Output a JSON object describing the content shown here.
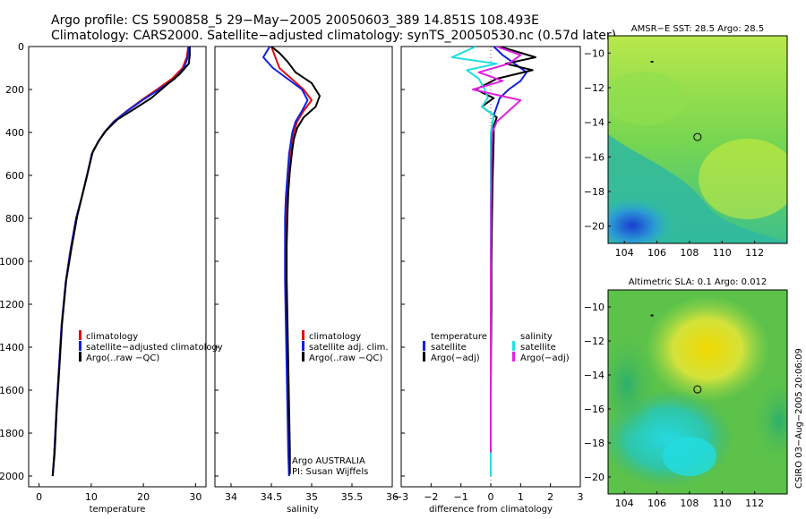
{
  "header": {
    "line1": "Argo profile: CS 5900858_5 29−May−2005 20050603_389 14.851S 108.493E",
    "line2": "Climatology: CARS2000. Satellite−adjusted climatology: synTS_20050530.nc (0.57d later)"
  },
  "footer": {
    "institution_line1": "Argo AUSTRALIA",
    "institution_line2": "PI: Susan Wijffels",
    "credit": "CSIRO 03−Aug−2005 20:06:09"
  },
  "colors": {
    "climatology": "#e01010",
    "satellite": "#1020e0",
    "argo": "#000000",
    "salinity_diff": "#e020e0",
    "salinity_sat": "#20e0e0"
  },
  "chart_data": [
    {
      "id": "temperature",
      "type": "line",
      "xlabel": "temperature",
      "ylabel": "",
      "xlim": [
        -2,
        32
      ],
      "ylim": [
        2050,
        0
      ],
      "xticks": [
        0,
        10,
        20,
        30
      ],
      "yticks": [
        0,
        200,
        400,
        600,
        800,
        1000,
        1200,
        1400,
        1600,
        1800,
        2000
      ],
      "legend": {
        "placement": "lower-right",
        "entries": [
          "climatology",
          "satellite−adjusted climatology",
          "Argo(..raw −QC)"
        ]
      },
      "series": [
        {
          "name": "climatology",
          "color": "#e01010",
          "x": [
            28.6,
            28.3,
            27.5,
            25.5,
            22.6,
            19.6,
            16.8,
            14.3,
            12.5,
            11.2,
            10.1,
            9.2,
            8.2,
            7.1,
            6.0,
            5.1,
            4.3,
            3.8,
            3.3,
            2.9,
            2.6
          ],
          "y": [
            0,
            50,
            100,
            150,
            200,
            250,
            300,
            350,
            400,
            450,
            500,
            600,
            700,
            800,
            950,
            1100,
            1300,
            1500,
            1700,
            1900,
            2000
          ]
        },
        {
          "name": "satellite-adjusted climatology",
          "color": "#1020e0",
          "x": [
            28.7,
            28.5,
            27.8,
            26.0,
            23.0,
            19.8,
            16.9,
            14.3,
            12.5,
            11.2,
            10.1,
            9.2,
            8.2,
            7.1,
            6.0,
            5.1,
            4.3,
            3.8,
            3.3,
            2.9,
            2.6
          ],
          "y": [
            0,
            50,
            100,
            150,
            200,
            250,
            300,
            350,
            400,
            450,
            500,
            600,
            700,
            800,
            950,
            1100,
            1300,
            1500,
            1700,
            1900,
            2000
          ]
        },
        {
          "name": "Argo(..raw -QC)",
          "color": "#000000",
          "x": [
            28.9,
            28.9,
            28.7,
            26.9,
            24.4,
            21.5,
            18.3,
            15.0,
            12.9,
            11.4,
            10.3,
            9.3,
            8.3,
            7.3,
            6.2,
            5.2,
            4.4,
            3.9,
            3.4,
            3.0,
            2.6
          ],
          "y": [
            0,
            40,
            80,
            130,
            180,
            240,
            290,
            340,
            390,
            440,
            490,
            590,
            690,
            790,
            940,
            1090,
            1290,
            1490,
            1690,
            1890,
            2000
          ]
        }
      ]
    },
    {
      "id": "salinity",
      "type": "line",
      "xlabel": "salinity",
      "ylabel": "",
      "xlim": [
        33.8,
        36.0
      ],
      "ylim": [
        2050,
        0
      ],
      "xticks": [
        34,
        34.5,
        35,
        35.5,
        36
      ],
      "yticks": [
        0,
        200,
        400,
        600,
        800,
        1000,
        1200,
        1400,
        1600,
        1800,
        2000
      ],
      "legend": {
        "placement": "lower-right",
        "entries": [
          "climatology",
          "satellite adj. clim.",
          "Argo(..raw −QC)"
        ]
      },
      "series": [
        {
          "name": "climatology",
          "color": "#e01010",
          "x": [
            34.5,
            34.55,
            34.6,
            34.75,
            34.9,
            35.0,
            34.9,
            34.82,
            34.78,
            34.76,
            34.74,
            34.72,
            34.7,
            34.69,
            34.68,
            34.68,
            34.69,
            34.7,
            34.71,
            34.72,
            34.72
          ],
          "y": [
            0,
            50,
            100,
            150,
            200,
            250,
            300,
            350,
            400,
            450,
            500,
            600,
            700,
            800,
            950,
            1100,
            1300,
            1500,
            1700,
            1900,
            2000
          ]
        },
        {
          "name": "satellite adj. clim.",
          "color": "#1020e0",
          "x": [
            34.48,
            34.4,
            34.52,
            34.7,
            34.88,
            34.95,
            34.88,
            34.8,
            34.76,
            34.74,
            34.72,
            34.7,
            34.68,
            34.67,
            34.67,
            34.67,
            34.68,
            34.69,
            34.7,
            34.71,
            34.72
          ],
          "y": [
            0,
            50,
            100,
            150,
            200,
            250,
            300,
            350,
            400,
            450,
            500,
            600,
            700,
            800,
            950,
            1100,
            1300,
            1500,
            1700,
            1900,
            2000
          ]
        },
        {
          "name": "Argo(..raw -QC)",
          "color": "#000000",
          "x": [
            34.5,
            34.6,
            34.7,
            34.8,
            35.0,
            35.1,
            35.05,
            34.9,
            34.82,
            34.78,
            34.76,
            34.73,
            34.71,
            34.7,
            34.69,
            34.69,
            34.7,
            34.71,
            34.72,
            34.73,
            34.73
          ],
          "y": [
            0,
            30,
            70,
            120,
            170,
            230,
            280,
            330,
            380,
            430,
            480,
            580,
            680,
            780,
            930,
            1080,
            1280,
            1480,
            1680,
            1880,
            1990
          ]
        }
      ]
    },
    {
      "id": "difference",
      "type": "line",
      "xlabel": "difference from climatology",
      "ylabel": "",
      "xlim": [
        -3,
        3
      ],
      "ylim": [
        2050,
        0
      ],
      "xticks": [
        -3,
        -2,
        -1,
        0,
        1,
        2,
        3
      ],
      "yticks": [
        0,
        200,
        400,
        600,
        800,
        1000,
        1200,
        1400,
        1600,
        1800,
        2000
      ],
      "legend": {
        "placement": "lower",
        "entries": [
          "temperature",
          "satellite",
          "Argo(−adj)",
          "salinity",
          "satellite",
          "Argo(−adj)"
        ]
      },
      "series": [
        {
          "name": "temperature satellite",
          "color": "#1020e0",
          "x": [
            0.1,
            0.4,
            0.8,
            1.2,
            1.0,
            0.6,
            0.3,
            0.2,
            0.1,
            0.05,
            0.03,
            0.02,
            0.02,
            0.02,
            0.01,
            0.01,
            0.01,
            0.0,
            0.0,
            0.0,
            0.0
          ],
          "y": [
            0,
            40,
            80,
            120,
            160,
            200,
            240,
            280,
            320,
            360,
            400,
            500,
            600,
            700,
            800,
            1000,
            1200,
            1400,
            1600,
            1800,
            2000
          ]
        },
        {
          "name": "temperature Argo(-adj)",
          "color": "#000000",
          "x": [
            0.3,
            1.5,
            0.5,
            1.4,
            0.2,
            -0.5,
            0.1,
            -0.3,
            0.2,
            0.1,
            0.1,
            0.08,
            0.06,
            0.05,
            0.04,
            0.02,
            0.02,
            0.01,
            0.0,
            0.0,
            0.0
          ],
          "y": [
            0,
            50,
            80,
            110,
            150,
            200,
            240,
            280,
            330,
            370,
            420,
            520,
            620,
            720,
            820,
            1020,
            1220,
            1420,
            1620,
            1800,
            1890
          ]
        },
        {
          "name": "salinity satellite",
          "color": "#20e0e0",
          "x": [
            -0.5,
            -1.3,
            0.2,
            -0.8,
            -0.4,
            -0.2,
            -0.1,
            -0.3,
            0.1,
            0.05,
            0.0,
            0.0,
            0.0,
            0.0,
            0.0,
            0.0,
            0.0,
            0.0,
            0.0,
            0.0,
            0.0
          ],
          "y": [
            0,
            50,
            80,
            110,
            150,
            200,
            240,
            280,
            320,
            360,
            400,
            500,
            600,
            700,
            800,
            1000,
            1200,
            1400,
            1600,
            1800,
            2000
          ]
        },
        {
          "name": "salinity Argo(-adj)",
          "color": "#e020e0",
          "x": [
            0.2,
            1.0,
            0.6,
            -0.4,
            0.4,
            -0.6,
            1.0,
            0.6,
            0.2,
            0.05,
            0.03,
            0.02,
            0.02,
            0.01,
            0.01,
            0.0,
            0.0,
            0.0,
            0.0,
            0.0,
            0.0
          ],
          "y": [
            0,
            40,
            80,
            120,
            160,
            200,
            250,
            300,
            350,
            400,
            450,
            550,
            650,
            750,
            850,
            1050,
            1250,
            1450,
            1650,
            1800,
            1890
          ]
        }
      ]
    },
    {
      "id": "sst-map",
      "type": "heatmap",
      "title": "AMSR−E SST: 28.5 Argo: 28.5",
      "xlim": [
        103,
        114
      ],
      "ylim": [
        -21,
        -9
      ],
      "xticks": [
        104,
        106,
        108,
        110,
        112
      ],
      "yticks": [
        -10,
        -12,
        -14,
        -16,
        -18,
        -20
      ],
      "float_position": {
        "lon": 108.49,
        "lat": -14.85
      },
      "marker": {
        "lon": 105.7,
        "lat": -10.5
      }
    },
    {
      "id": "sla-map",
      "type": "heatmap",
      "title": "Altimetric SLA: 0.1 Argo: 0.012",
      "xlim": [
        103,
        114
      ],
      "ylim": [
        -21,
        -9
      ],
      "xticks": [
        104,
        106,
        108,
        110,
        112
      ],
      "yticks": [
        -10,
        -12,
        -14,
        -16,
        -18,
        -20
      ],
      "float_position": {
        "lon": 108.49,
        "lat": -14.85
      },
      "marker": {
        "lon": 105.7,
        "lat": -10.5
      }
    }
  ]
}
